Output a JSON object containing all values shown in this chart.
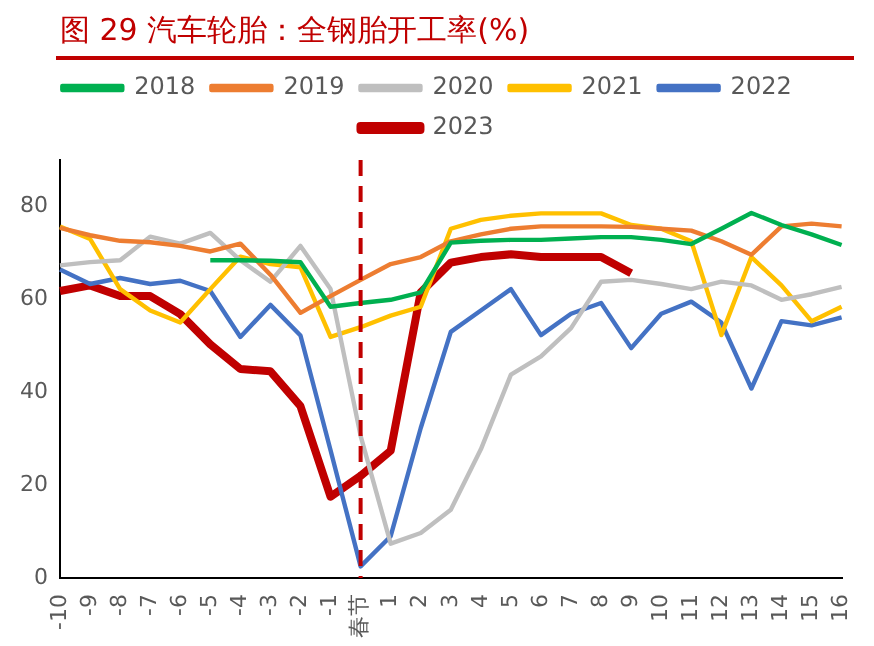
{
  "chart_data": {
    "type": "line",
    "title": "图 29  汽车轮胎：全钢胎开工率(%)",
    "categories": [
      "-10",
      "-9",
      "-8",
      "-7",
      "-6",
      "-5",
      "-4",
      "-3",
      "-2",
      "-1",
      "春节",
      "1",
      "2",
      "3",
      "4",
      "5",
      "6",
      "7",
      "8",
      "9",
      "10",
      "11",
      "12",
      "13",
      "14",
      "15",
      "16"
    ],
    "series": [
      {
        "name": "2018",
        "color": "#00b050",
        "values": [
          null,
          null,
          null,
          null,
          null,
          68.4,
          68.4,
          68.3,
          68,
          58.4,
          59.2,
          59.9,
          61.5,
          72.2,
          72.6,
          72.8,
          72.8,
          73.1,
          73.4,
          73.4,
          72.8,
          71.9,
          75.2,
          78.6,
          76,
          74,
          71.7
        ]
      },
      {
        "name": "2019",
        "color": "#ed7d31",
        "values": [
          75.4,
          73.8,
          72.6,
          72.3,
          71.5,
          70.3,
          72,
          65.3,
          57.1,
          60.7,
          64.2,
          67.6,
          69.1,
          72.5,
          74,
          75.2,
          75.7,
          75.7,
          75.7,
          75.6,
          75.2,
          74.8,
          72.5,
          69.6,
          75.7,
          76.3,
          75.7
        ]
      },
      {
        "name": "2020",
        "color": "#bfbfbf",
        "values": [
          67.3,
          68,
          68.4,
          73.5,
          72,
          74.3,
          68.4,
          63.8,
          71.5,
          62.2,
          30.6,
          7.4,
          9.7,
          14.7,
          27.7,
          43.8,
          47.7,
          53.8,
          63.8,
          64.2,
          63.3,
          62.2,
          63.8,
          63,
          59.9,
          61.1,
          62.7
        ]
      },
      {
        "name": "2021",
        "color": "#ffc000",
        "values": [
          75.7,
          73,
          62.2,
          57.6,
          55,
          62.2,
          69.2,
          67.6,
          66.9,
          51.9,
          54,
          56.5,
          58.4,
          75.2,
          77.1,
          78,
          78.5,
          78.5,
          78.5,
          76,
          75.2,
          72.5,
          52.3,
          69.1,
          63,
          55.3,
          58.4
        ]
      },
      {
        "name": "2022",
        "color": "#4472c4",
        "values": [
          66.4,
          63.3,
          64.6,
          63.3,
          64,
          61.8,
          51.9,
          58.8,
          52.2,
          27.5,
          2.5,
          9,
          32.3,
          53,
          57.6,
          62.2,
          52.3,
          56.9,
          59.2,
          49.5,
          56.9,
          59.5,
          55,
          40.8,
          55.3,
          54.4,
          56.1
        ]
      },
      {
        "name": "2023",
        "color": "#c00000",
        "values": [
          61.8,
          63,
          60.7,
          60.7,
          56.8,
          50.3,
          45,
          44.5,
          37,
          17.5,
          22,
          27.4,
          61.5,
          67.9,
          69.1,
          69.7,
          69.1,
          69.1,
          69.1,
          65.6,
          null,
          null,
          null,
          null,
          null,
          null,
          null
        ]
      }
    ],
    "ylim": [
      0,
      90
    ],
    "yticks": [
      0,
      20,
      40,
      60,
      80
    ],
    "grid": false,
    "legend": "top",
    "marker": "none",
    "line_style": "solid",
    "ref_lines": [
      {
        "axis": "x",
        "value": "春节",
        "color": "#c00000",
        "line_style": "dashed"
      }
    ]
  }
}
